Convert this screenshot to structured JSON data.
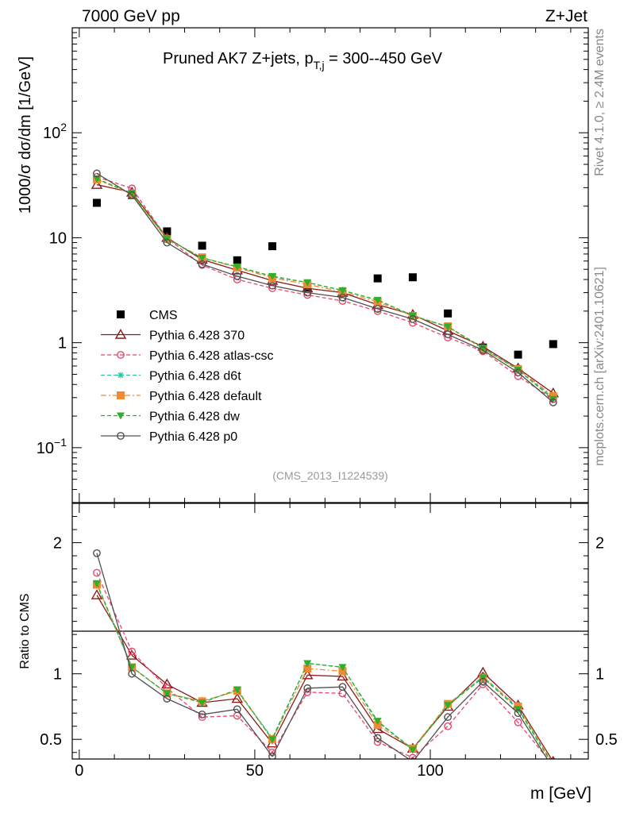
{
  "header": {
    "left": "7000 GeV pp",
    "right": "Z+Jet"
  },
  "side_text": {
    "rivet": "Rivet 4.1.0, ≥ 2.4M events",
    "mcplots": "mcplots.cern.ch [arXiv:2401.10621]"
  },
  "chart_data": [
    {
      "type": "scatter",
      "panel": "main",
      "title_parts": {
        "main": "Pruned AK7 Z+jets, p",
        "sub": "T,j",
        "tail": " = 300--450 GeV"
      },
      "ylabel": "1000/σ  dσ/dm [1/GeV]",
      "yscale": "log",
      "ylim": [
        0.03,
        1000
      ],
      "xlim": [
        -2,
        145
      ],
      "y_ticks": [
        {
          "value": 0.1,
          "base": "10",
          "exp": "−1"
        },
        {
          "value": 1,
          "base": "1",
          "exp": ""
        },
        {
          "value": 10,
          "base": "10",
          "exp": ""
        },
        {
          "value": 100,
          "base": "10",
          "exp": "2"
        }
      ],
      "analysis_id": "(CMS_2013_I1224539)",
      "legend_position": "middle-left",
      "x": [
        5,
        15,
        25,
        35,
        45,
        55,
        65,
        75,
        85,
        95,
        105,
        115,
        125,
        135
      ],
      "series": [
        {
          "name": "CMS",
          "color": "#000000",
          "marker": "square",
          "line": "none",
          "values": [
            21.5,
            25.5,
            11.5,
            8.4,
            6.1,
            8.3,
            3.3,
            3.0,
            4.1,
            4.2,
            1.9,
            0.9,
            0.77,
            0.97
          ]
        },
        {
          "name": "Pythia 6.428 370",
          "color": "#8b1a1a",
          "marker": "triangle",
          "line": "solid",
          "values": [
            32,
            27,
            10,
            6.2,
            4.9,
            3.9,
            3.3,
            3.0,
            2.3,
            1.85,
            1.3,
            0.92,
            0.57,
            0.33
          ]
        },
        {
          "name": "Pythia 6.428 atlas-csc",
          "color": "#e8476a",
          "marker": "circle",
          "line": "dashed",
          "values": [
            38,
            29.5,
            9.9,
            5.5,
            4.0,
            3.3,
            2.85,
            2.5,
            2.0,
            1.55,
            1.12,
            0.83,
            0.48,
            0.29
          ]
        },
        {
          "name": "Pythia 6.428 d6t",
          "color": "#2ec4a0",
          "marker": "asterisk",
          "line": "dashed",
          "values": [
            36,
            26.5,
            9.8,
            6.4,
            5.3,
            4.25,
            3.75,
            3.15,
            2.55,
            1.82,
            1.42,
            0.9,
            0.55,
            0.3
          ]
        },
        {
          "name": "Pythia 6.428 default",
          "color": "#f08a30",
          "marker": "square",
          "line": "dashdot",
          "values": [
            36,
            26,
            9.7,
            6.5,
            5.2,
            4.15,
            3.6,
            3.05,
            2.45,
            1.8,
            1.43,
            0.87,
            0.56,
            0.31
          ]
        },
        {
          "name": "Pythia 6.428 dw",
          "color": "#2fae2f",
          "marker": "triangle-down",
          "line": "dashed",
          "values": [
            36.5,
            26.5,
            9.8,
            6.4,
            5.3,
            4.3,
            3.75,
            3.15,
            2.55,
            1.8,
            1.42,
            0.89,
            0.55,
            0.29
          ]
        },
        {
          "name": "Pythia 6.428 p0",
          "color": "#505050",
          "marker": "circle",
          "line": "solid",
          "values": [
            41,
            25.5,
            9.0,
            5.6,
            4.3,
            3.5,
            3.0,
            2.7,
            2.1,
            1.68,
            1.2,
            0.85,
            0.52,
            0.27
          ]
        }
      ]
    },
    {
      "type": "line",
      "panel": "ratio",
      "ylabel": "Ratio to CMS",
      "xlabel": "m [GeV]",
      "ylim": [
        0.35,
        2.3
      ],
      "xlim": [
        -2,
        145
      ],
      "x_ticks": [
        0,
        50,
        100
      ],
      "y_ticks": [
        0.5,
        1,
        2
      ],
      "x": [
        5,
        15,
        25,
        35,
        45,
        55,
        65,
        75,
        85,
        95,
        105,
        115,
        125,
        135
      ],
      "series": [
        {
          "name": "Pythia 6.428 370",
          "color": "#8b1a1a",
          "marker": "triangle",
          "line": "solid",
          "values": [
            1.6,
            1.14,
            0.92,
            0.78,
            0.81,
            0.47,
            0.99,
            0.98,
            0.58,
            0.43,
            0.75,
            1.01,
            0.76,
            0.33
          ]
        },
        {
          "name": "Pythia 6.428 atlas-csc",
          "color": "#e8476a",
          "marker": "circle",
          "line": "dashed",
          "values": [
            1.77,
            1.17,
            0.89,
            0.67,
            0.68,
            0.4,
            0.86,
            0.85,
            0.48,
            0.36,
            0.6,
            0.92,
            0.63,
            0.3
          ]
        },
        {
          "name": "Pythia 6.428 d6t",
          "color": "#2ec4a0",
          "marker": "asterisk",
          "line": "dashed",
          "values": [
            1.68,
            1.05,
            0.85,
            0.79,
            0.87,
            0.51,
            1.08,
            1.05,
            0.63,
            0.43,
            0.76,
            0.98,
            0.74,
            0.31
          ]
        },
        {
          "name": "Pythia 6.428 default",
          "color": "#f08a30",
          "marker": "square",
          "line": "dashdot",
          "values": [
            1.68,
            1.05,
            0.85,
            0.79,
            0.87,
            0.5,
            1.04,
            1.02,
            0.61,
            0.43,
            0.77,
            0.97,
            0.75,
            0.32
          ]
        },
        {
          "name": "Pythia 6.428 dw",
          "color": "#2fae2f",
          "marker": "triangle-down",
          "line": "dashed",
          "values": [
            1.69,
            1.05,
            0.85,
            0.78,
            0.88,
            0.5,
            1.08,
            1.05,
            0.64,
            0.42,
            0.76,
            0.97,
            0.73,
            0.3
          ]
        },
        {
          "name": "Pythia 6.428 p0",
          "color": "#505050",
          "marker": "circle",
          "line": "solid",
          "values": [
            1.92,
            1.0,
            0.81,
            0.69,
            0.73,
            0.37,
            0.89,
            0.9,
            0.51,
            0.33,
            0.67,
            0.94,
            0.7,
            0.28
          ]
        }
      ]
    }
  ]
}
